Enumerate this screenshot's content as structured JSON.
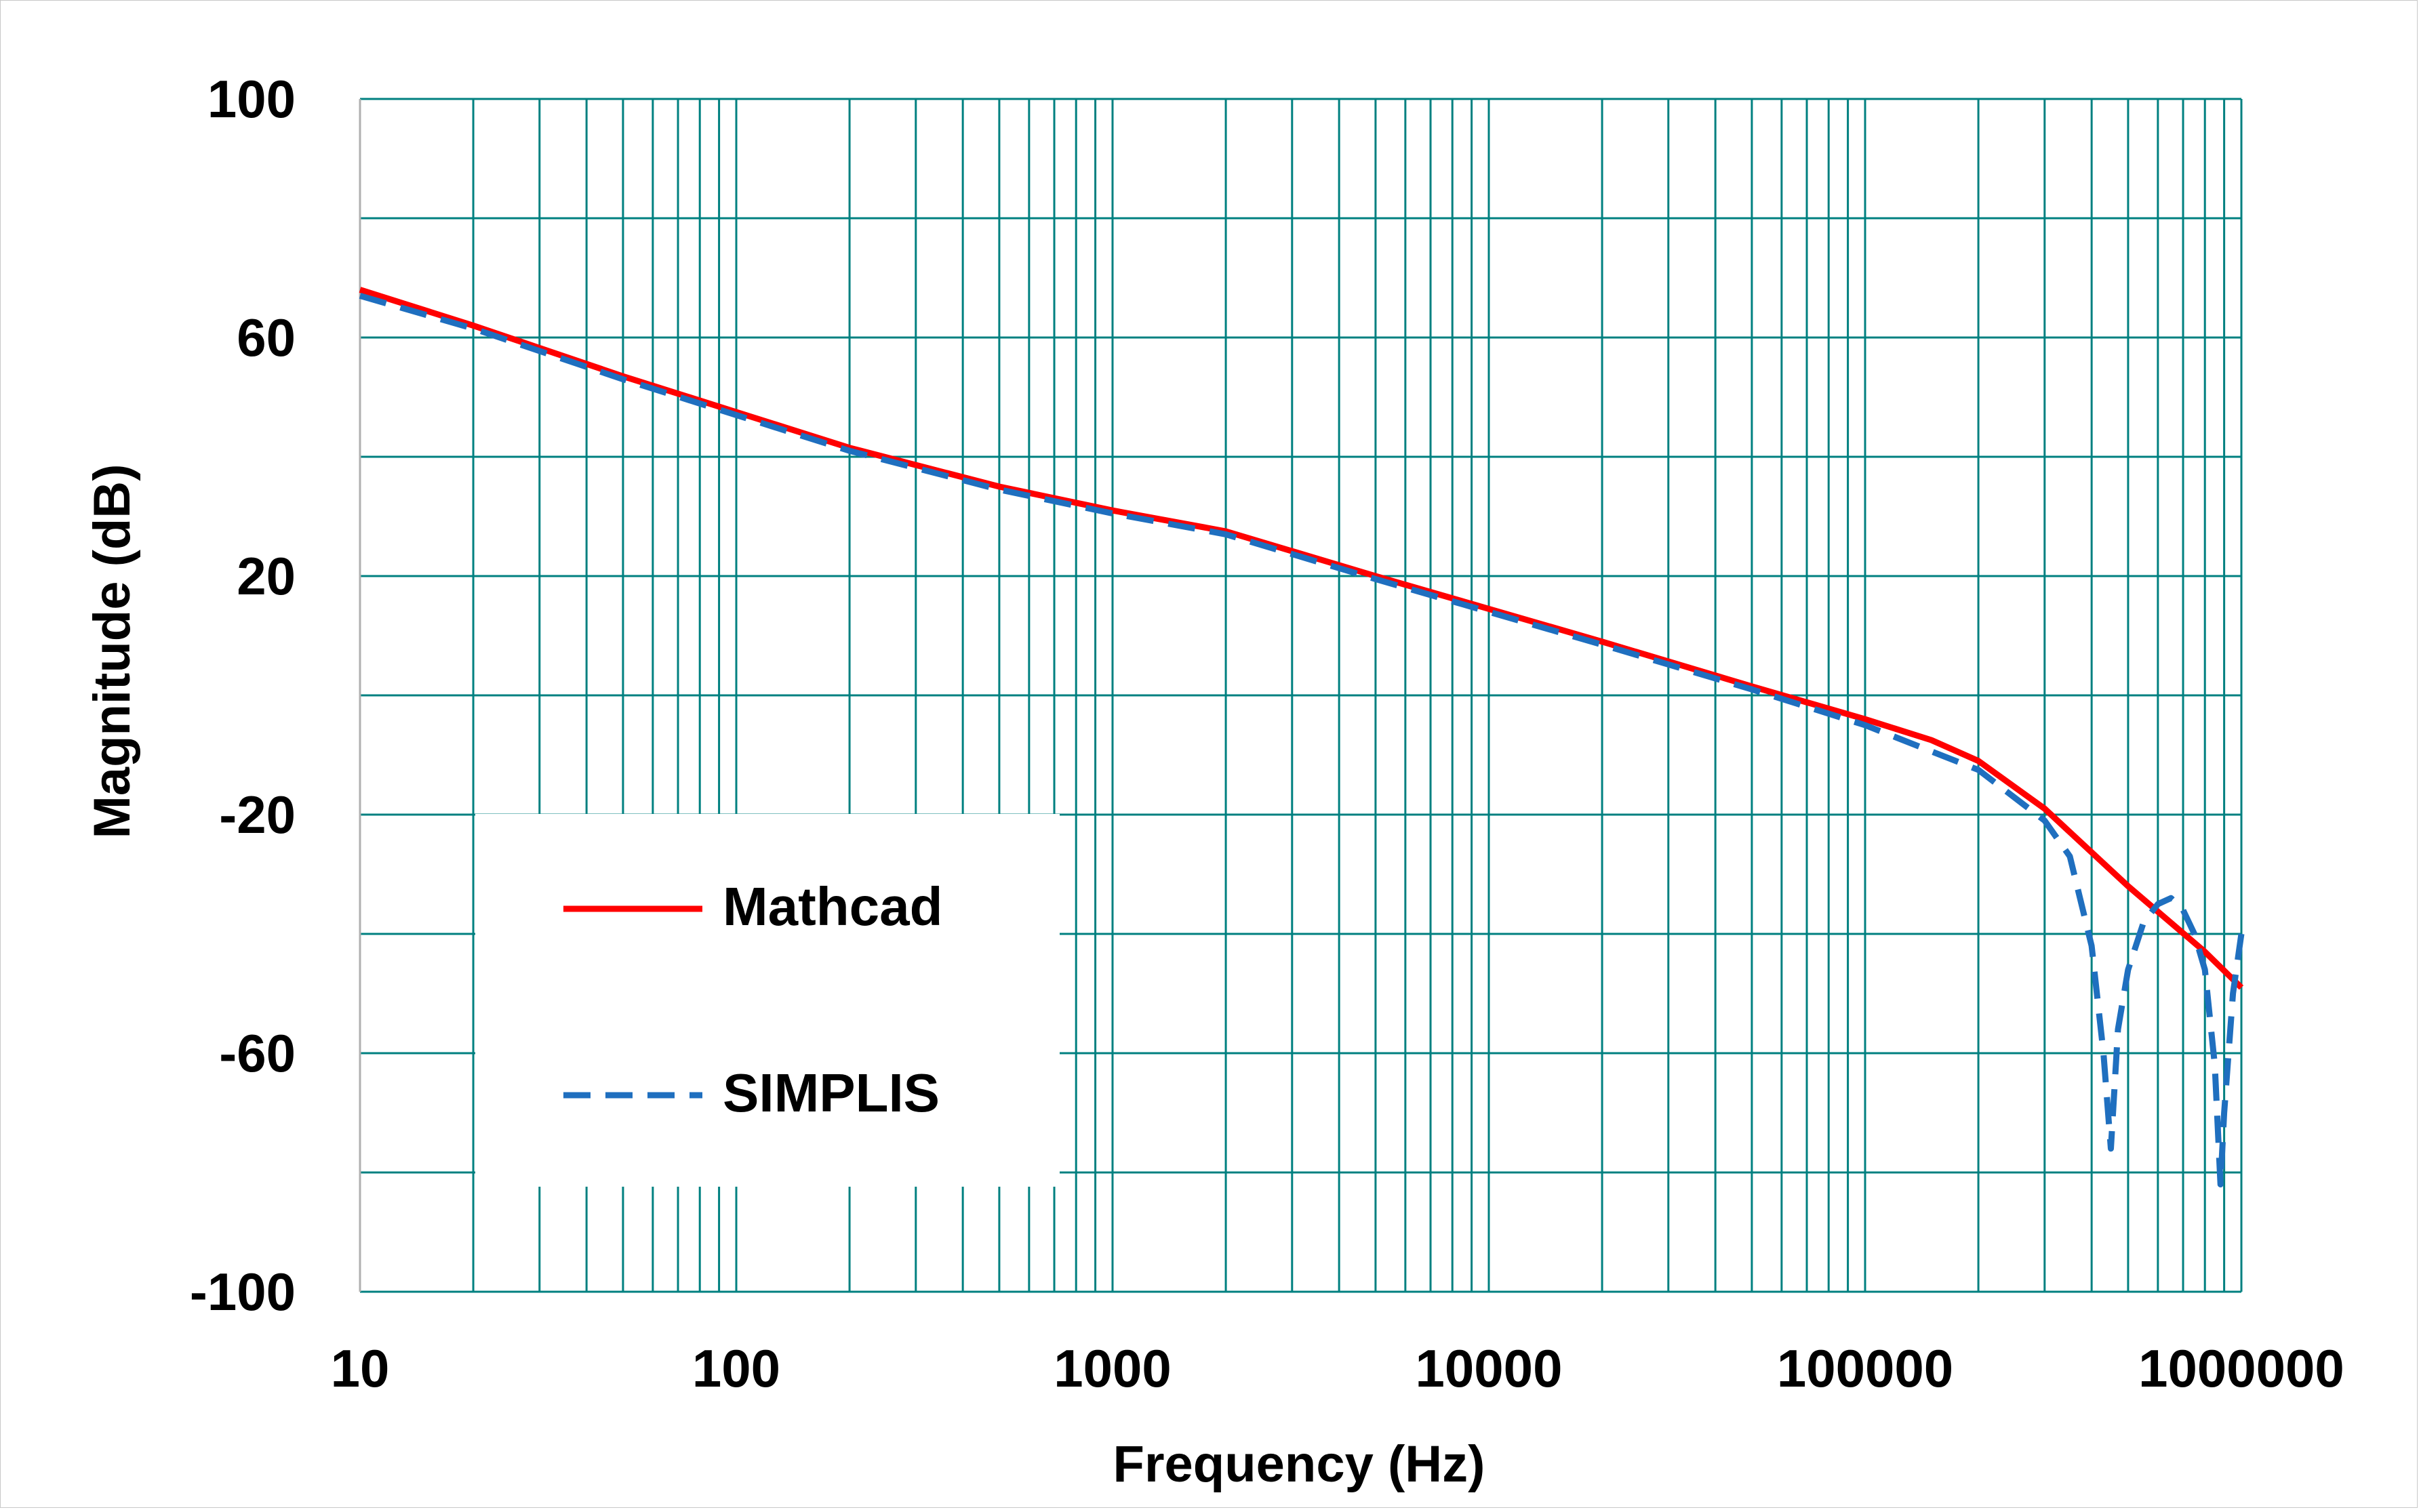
{
  "chart_data": {
    "type": "line",
    "title": "",
    "xlabel": "Frequency (Hz)",
    "ylabel": "Magnitude (dB)",
    "x_scale": "log",
    "xlim": [
      10,
      1000000
    ],
    "ylim": [
      -100,
      100
    ],
    "x_ticks": [
      "10",
      "100",
      "1000",
      "10000",
      "100000",
      "1000000"
    ],
    "y_ticks": [
      "100",
      "60",
      "20",
      "-20",
      "-60",
      "-100"
    ],
    "grid": true,
    "grid_color": "#008080",
    "legend_position": "bottom-left",
    "series": [
      {
        "name": "Mathcad",
        "color": "#ff0000",
        "style": "solid",
        "points": [
          [
            10,
            68
          ],
          [
            20,
            62
          ],
          [
            50,
            53.5
          ],
          [
            100,
            47.5
          ],
          [
            200,
            41.5
          ],
          [
            500,
            35
          ],
          [
            1000,
            31
          ],
          [
            2000,
            27.5
          ],
          [
            5000,
            20
          ],
          [
            10000,
            14.5
          ],
          [
            20000,
            9
          ],
          [
            50000,
            1.5
          ],
          [
            100000,
            -4
          ],
          [
            150000,
            -7.5
          ],
          [
            200000,
            -11
          ],
          [
            300000,
            -19
          ],
          [
            500000,
            -32
          ],
          [
            800000,
            -43
          ],
          [
            1000000,
            -49
          ]
        ]
      },
      {
        "name": "SIMPLIS",
        "color": "#1f6fbf",
        "style": "dashed",
        "points": [
          [
            10,
            67
          ],
          [
            20,
            61.5
          ],
          [
            50,
            53
          ],
          [
            100,
            47
          ],
          [
            200,
            41
          ],
          [
            500,
            34.5
          ],
          [
            1000,
            30.5
          ],
          [
            2000,
            27
          ],
          [
            5000,
            19.5
          ],
          [
            10000,
            14
          ],
          [
            20000,
            8.5
          ],
          [
            50000,
            1
          ],
          [
            100000,
            -5
          ],
          [
            200000,
            -12.5
          ],
          [
            300000,
            -21
          ],
          [
            350000,
            -27
          ],
          [
            400000,
            -42
          ],
          [
            430000,
            -60
          ],
          [
            450000,
            -76
          ],
          [
            470000,
            -56
          ],
          [
            500000,
            -46
          ],
          [
            550000,
            -38
          ],
          [
            600000,
            -35
          ],
          [
            650000,
            -34
          ],
          [
            700000,
            -36
          ],
          [
            750000,
            -40
          ],
          [
            800000,
            -46
          ],
          [
            850000,
            -62
          ],
          [
            880000,
            -82
          ],
          [
            900000,
            -70
          ],
          [
            950000,
            -50
          ],
          [
            1000000,
            -40
          ]
        ]
      }
    ]
  }
}
